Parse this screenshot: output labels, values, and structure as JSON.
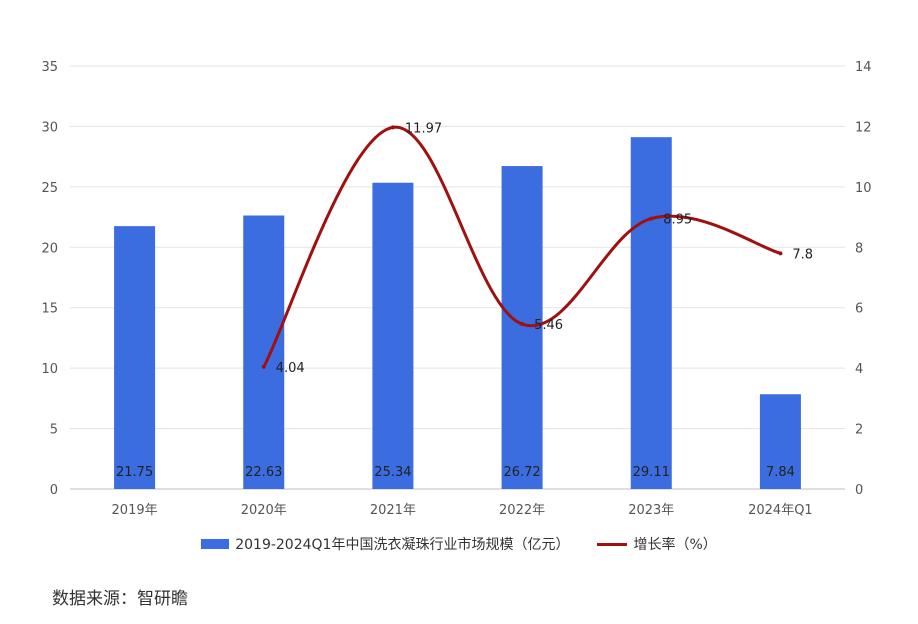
{
  "chart_data": {
    "type": "bar",
    "categories": [
      "2019年",
      "2020年",
      "2021年",
      "2022年",
      "2023年",
      "2024年Q1"
    ],
    "series": [
      {
        "name": "2019-2024Q1年中国洗衣凝珠行业市场规模（亿元）",
        "type": "bar",
        "axis": "left",
        "color": "#3B6CE0",
        "values": [
          21.75,
          22.63,
          25.34,
          26.72,
          29.11,
          7.84
        ],
        "labels": [
          "21.75",
          "22.63",
          "25.34",
          "26.72",
          "29.11",
          "7.84"
        ]
      },
      {
        "name": "增长率（%）",
        "type": "line",
        "axis": "right",
        "color": "#A01010",
        "values": [
          null,
          4.04,
          11.97,
          5.46,
          8.95,
          7.8
        ],
        "labels": [
          "",
          "4.04",
          "11.97",
          "5.46",
          "8.95",
          "7.8"
        ]
      }
    ],
    "y_left": {
      "min": 0,
      "max": 35,
      "step": 5
    },
    "y_right": {
      "min": 0,
      "max": 14,
      "step": 2
    },
    "grid": true,
    "legend_position": "bottom"
  },
  "source": "数据来源：智研瞻"
}
